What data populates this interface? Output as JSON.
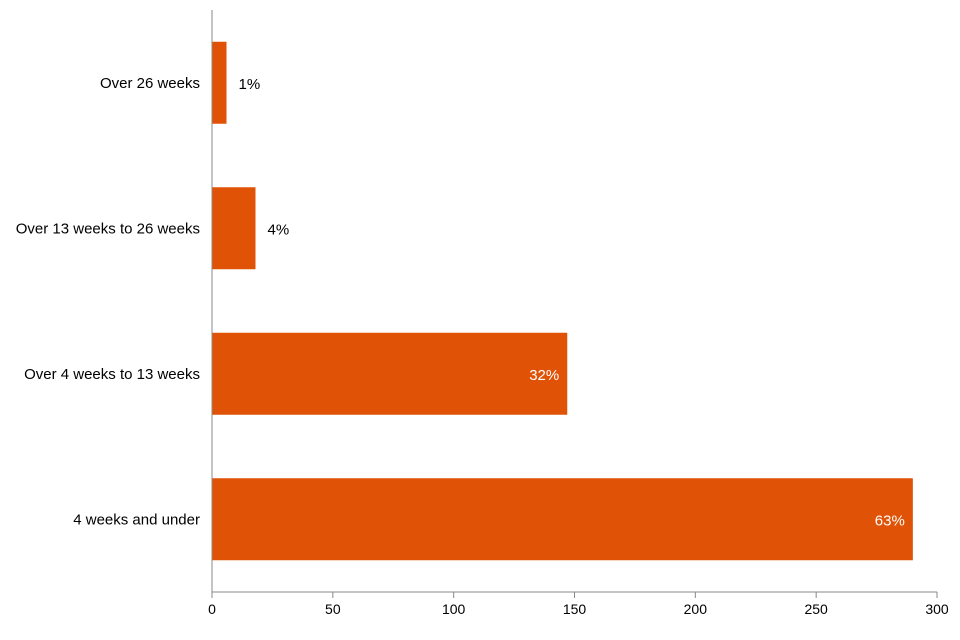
{
  "chart_data": {
    "type": "bar",
    "orientation": "horizontal",
    "categories": [
      "Over 26 weeks",
      "Over 13 weeks to 26 weeks",
      "Over 4 weeks to 13 weeks",
      "4 weeks and under"
    ],
    "values": [
      6,
      18,
      147,
      290
    ],
    "data_labels": [
      "1%",
      "4%",
      "32%",
      "63%"
    ],
    "title": "",
    "xlabel": "",
    "ylabel": "",
    "xlim": [
      0,
      300
    ],
    "x_ticks": [
      0,
      50,
      100,
      150,
      200,
      250,
      300
    ],
    "grid": false,
    "legend": "none",
    "bar_color": "#e05206",
    "label_color_inside": "#ffffff",
    "label_color_outside": "#000000"
  }
}
